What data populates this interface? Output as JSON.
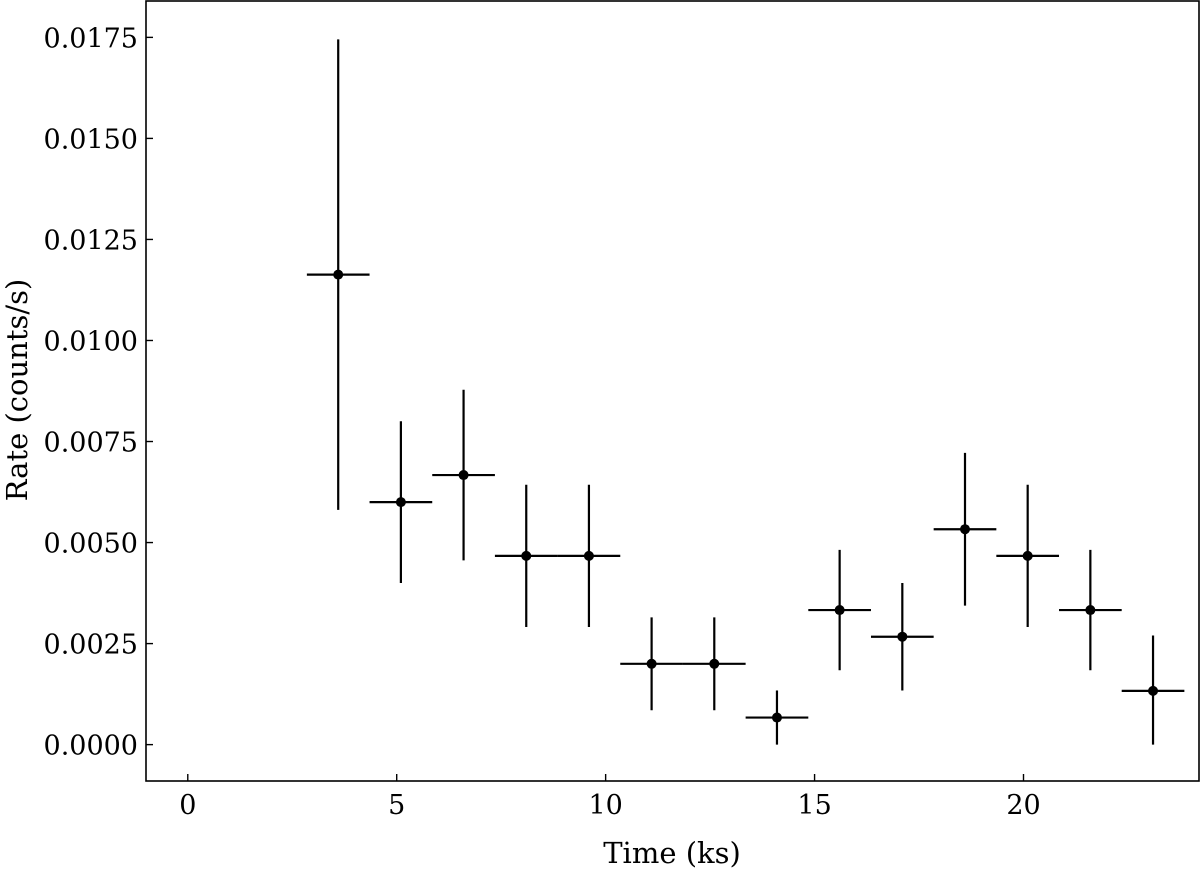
{
  "chart_data": {
    "type": "scatter",
    "title": "",
    "xlabel": "Time (ks)",
    "ylabel": "Rate (counts/s)",
    "xlim": [
      -1.0,
      24.2
    ],
    "ylim": [
      -0.0009,
      0.0184
    ],
    "xticks": [
      0,
      5,
      10,
      15,
      20
    ],
    "xtick_labels": [
      "0",
      "5",
      "10",
      "15",
      "20"
    ],
    "yticks": [
      0.0,
      0.0025,
      0.005,
      0.0075,
      0.01,
      0.0125,
      0.015,
      0.0175
    ],
    "ytick_labels": [
      "0.0000",
      "0.0025",
      "0.0050",
      "0.0075",
      "0.0100",
      "0.0125",
      "0.0150",
      "0.0175"
    ],
    "grid": false,
    "legend": "none",
    "marker_color": "#000000",
    "series": [
      {
        "x": [
          3.6,
          5.1,
          6.6,
          8.1,
          9.6,
          11.1,
          12.6,
          14.1,
          15.6,
          17.1,
          18.6,
          20.1,
          21.6,
          23.1
        ],
        "y": [
          0.01163,
          0.006,
          0.00667,
          0.00467,
          0.00467,
          0.002,
          0.002,
          0.00067,
          0.00333,
          0.00267,
          0.00533,
          0.00467,
          0.00333,
          0.00133
        ],
        "xerr": [
          0.75,
          0.75,
          0.75,
          0.75,
          0.75,
          0.75,
          0.75,
          0.75,
          0.75,
          0.75,
          0.75,
          0.75,
          0.75,
          0.75
        ],
        "yerr": [
          0.00582,
          0.002,
          0.00211,
          0.00176,
          0.00176,
          0.00115,
          0.00115,
          0.00067,
          0.00149,
          0.00133,
          0.00189,
          0.00176,
          0.00149,
          0.00137
        ]
      }
    ]
  }
}
